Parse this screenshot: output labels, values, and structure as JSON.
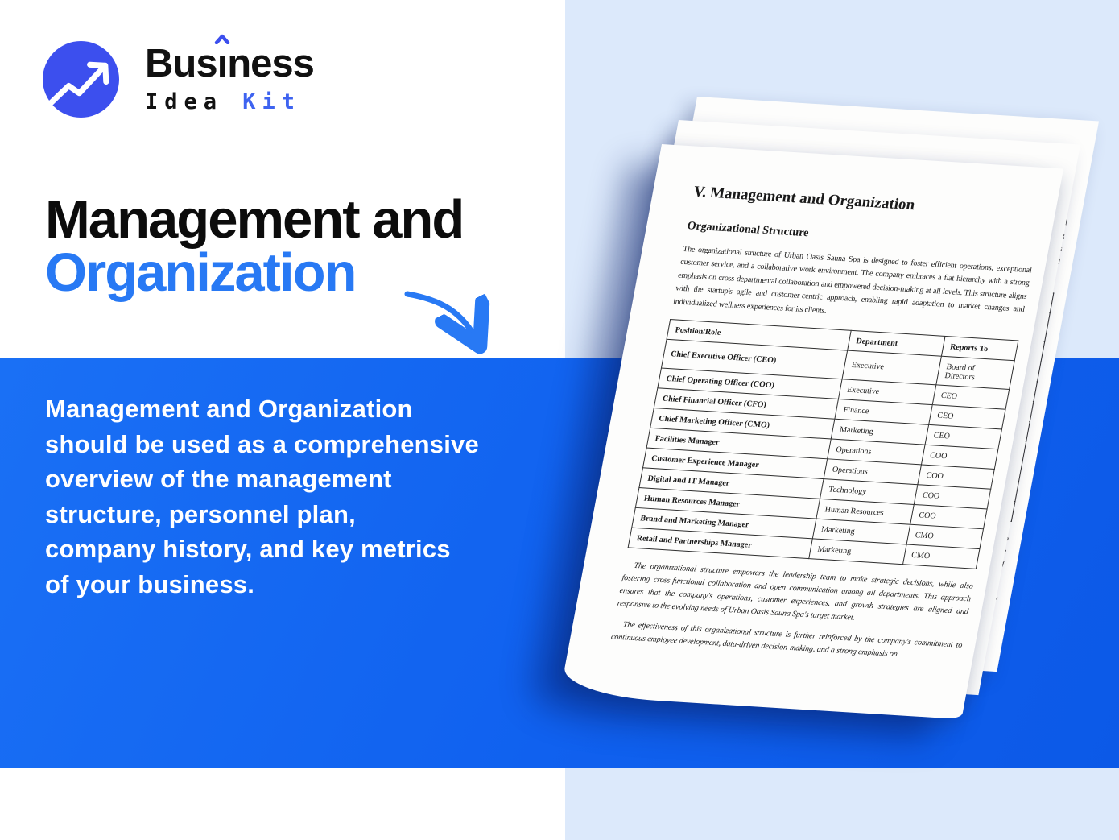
{
  "logo": {
    "brand_top_full": "Busîness",
    "brand_top_pre": "Bus",
    "brand_top_i": "ı",
    "brand_top_post": "ness",
    "brand_bottom_word1": "Idea",
    "brand_bottom_word2": "Kit",
    "icon": "trending-up-arrow-icon"
  },
  "hero": {
    "title_line1": "Management and",
    "title_line2": "Organization"
  },
  "description": {
    "lines": [
      "Management and Organization",
      "should be used as a comprehensive",
      "overview of the management",
      "structure, personnel plan,",
      "company history, and key metrics",
      "of your business."
    ]
  },
  "document": {
    "title": "V. Management and Organization",
    "section_heading": "Organizational Structure",
    "intro_paragraph": "The organizational structure of Urban Oasis Sauna Spa is designed to foster efficient operations, exceptional customer service, and a collaborative work environment. The company embraces a flat hierarchy with a strong emphasis on cross-departmental collaboration and empowered decision-making at all levels. This structure aligns with the startup's agile and customer-centric approach, enabling rapid adaptation to market changes and individualized wellness experiences for its clients.",
    "table": {
      "headers": [
        "Position/Role",
        "Department",
        "Reports To"
      ],
      "rows": [
        [
          "Chief Executive Officer (CEO)",
          "Executive",
          "Board of Directors"
        ],
        [
          "Chief Operating Officer (COO)",
          "Executive",
          "CEO"
        ],
        [
          "Chief Financial Officer (CFO)",
          "Finance",
          "CEO"
        ],
        [
          "Chief Marketing Officer (CMO)",
          "Marketing",
          "CEO"
        ],
        [
          "Facilities Manager",
          "Operations",
          "COO"
        ],
        [
          "Customer Experience Manager",
          "Operations",
          "COO"
        ],
        [
          "Digital and IT Manager",
          "Technology",
          "COO"
        ],
        [
          "Human Resources Manager",
          "Human Resources",
          "COO"
        ],
        [
          "Brand and Marketing Manager",
          "Marketing",
          "CMO"
        ],
        [
          "Retail and Partnerships Manager",
          "Marketing",
          "CMO"
        ]
      ]
    },
    "closing_paragraph_1": "The organizational structure empowers the leadership team to make strategic decisions, while also fostering cross-functional collaboration and open communication among all departments. This approach ensures that the company's operations, customer experiences, and growth strategies are aligned and responsive to the evolving needs of Urban Oasis Sauna Spa's target market.",
    "closing_paragraph_2": "The effectiveness of this organizational structure is further reinforced by the company's commitment to continuous employee development, data-driven decision-making, and a strong emphasis on"
  },
  "colors": {
    "accent_blue": "#2879f4",
    "band_blue": "#1061ef",
    "panel_light_blue": "#dce9fb",
    "logo_blue": "#3c4fee",
    "kit_blue": "#3e63f0",
    "heading_black": "#0c0c0c",
    "page_white": "#fdfdfc"
  }
}
